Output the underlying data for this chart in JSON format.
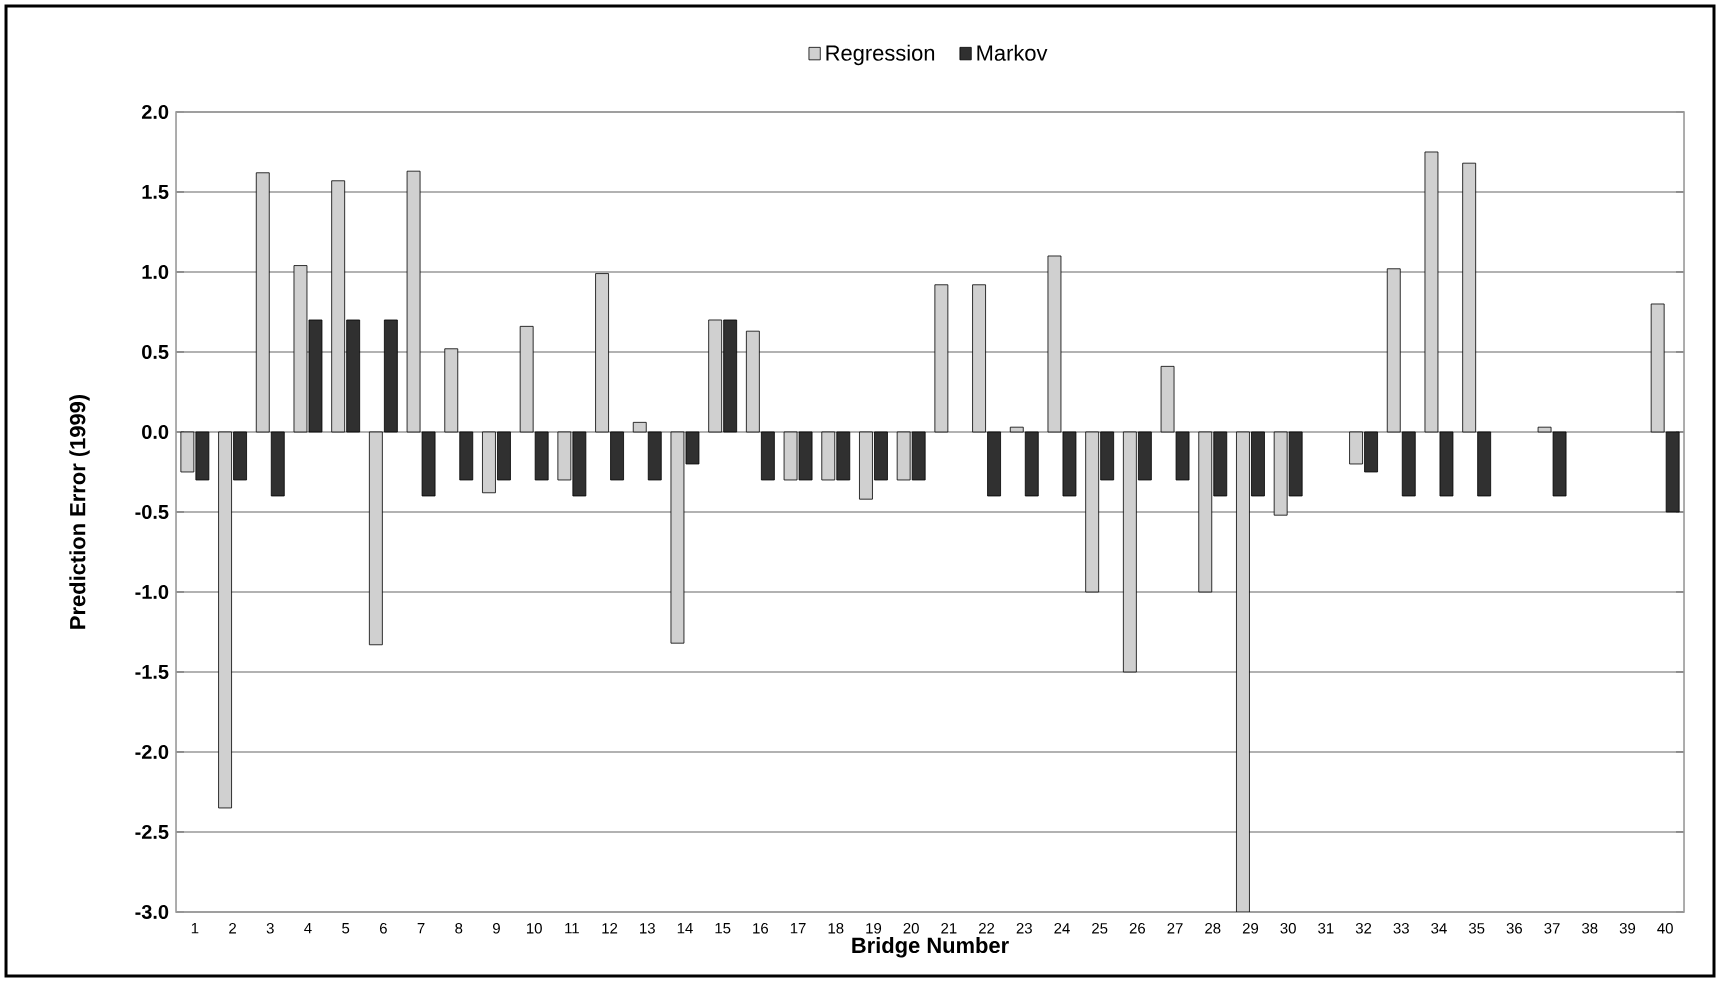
{
  "chart_data": {
    "type": "bar",
    "xlabel": "Bridge Number",
    "ylabel": "Prediction Error (1999)",
    "categories": [
      "1",
      "2",
      "3",
      "4",
      "5",
      "6",
      "7",
      "8",
      "9",
      "10",
      "11",
      "12",
      "13",
      "14",
      "15",
      "16",
      "17",
      "18",
      "19",
      "20",
      "21",
      "22",
      "23",
      "24",
      "25",
      "26",
      "27",
      "28",
      "29",
      "30",
      "31",
      "32",
      "33",
      "34",
      "35",
      "36",
      "37",
      "38",
      "39",
      "40"
    ],
    "series": [
      {
        "name": "Regression",
        "color": "#d0d0d0",
        "values": [
          -0.25,
          -2.35,
          1.62,
          1.04,
          1.57,
          -1.33,
          1.63,
          0.52,
          -0.38,
          0.66,
          -0.3,
          0.99,
          0.06,
          -1.32,
          0.7,
          0.63,
          -0.3,
          -0.3,
          -0.42,
          -0.3,
          0.92,
          0.92,
          0.03,
          1.1,
          -1.0,
          -1.5,
          0.41,
          -1.0,
          -3.0,
          -0.52,
          null,
          -0.2,
          1.02,
          1.75,
          1.68,
          null,
          0.03,
          null,
          null,
          0.8
        ]
      },
      {
        "name": "Markov",
        "color": "#303030",
        "values": [
          -0.3,
          -0.3,
          -0.4,
          0.7,
          0.7,
          0.7,
          -0.4,
          -0.3,
          -0.3,
          -0.3,
          -0.4,
          -0.3,
          -0.3,
          -0.2,
          0.7,
          -0.3,
          -0.3,
          -0.3,
          -0.3,
          -0.3,
          null,
          -0.4,
          -0.4,
          -0.4,
          -0.3,
          -0.3,
          -0.3,
          -0.4,
          -0.4,
          -0.4,
          null,
          -0.25,
          -0.4,
          -0.4,
          -0.4,
          null,
          -0.4,
          null,
          null,
          -0.5
        ]
      }
    ],
    "ylim": [
      -3.0,
      2.0
    ],
    "yticks": [
      {
        "value": -3.0,
        "label": "-3.0"
      },
      {
        "value": -2.5,
        "label": "-2.5"
      },
      {
        "value": -2.0,
        "label": "-2.0"
      },
      {
        "value": -1.5,
        "label": "-1.5"
      },
      {
        "value": -1.0,
        "label": "-1.0"
      },
      {
        "value": -0.5,
        "label": "-0.5"
      },
      {
        "value": 0.0,
        "label": "0.0"
      },
      {
        "value": 0.5,
        "label": "0.5"
      },
      {
        "value": 1.0,
        "label": "1.0"
      },
      {
        "value": 1.5,
        "label": "1.5"
      },
      {
        "value": 2.0,
        "label": "2.0"
      }
    ],
    "grid": "y",
    "legend": "top"
  }
}
